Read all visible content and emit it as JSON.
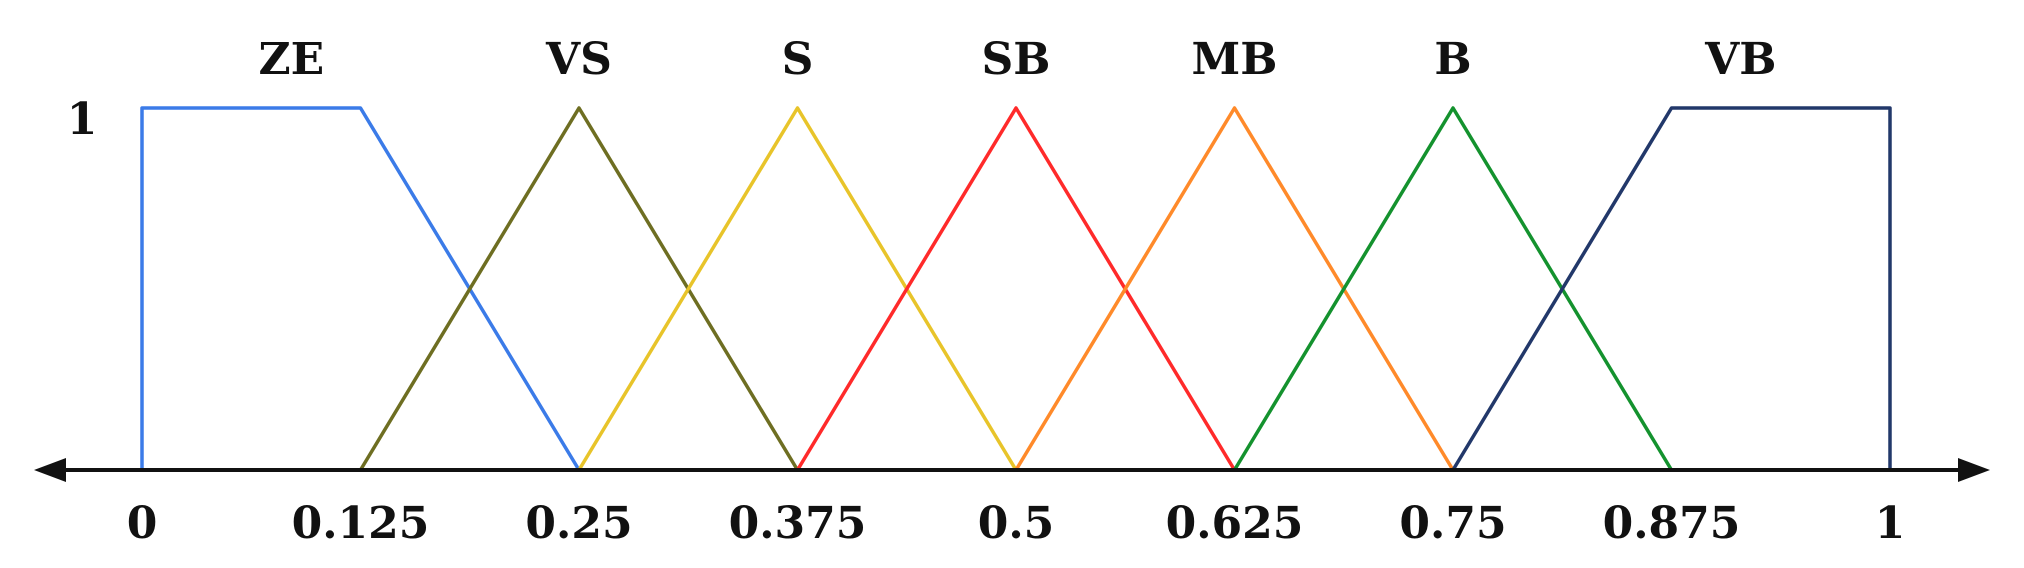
{
  "chart_data": {
    "type": "line",
    "title": "",
    "xlabel": "",
    "ylabel": "",
    "xlim": [
      0,
      1
    ],
    "ylim": [
      0,
      1
    ],
    "grid": false,
    "legend": "none",
    "x_ticks": [
      "0",
      "0.125",
      "0.25",
      "0.375",
      "0.5",
      "0.625",
      "0.75",
      "0.875",
      "1"
    ],
    "x_tick_values": [
      0,
      0.125,
      0.25,
      0.375,
      0.5,
      0.625,
      0.75,
      0.875,
      1
    ],
    "y_ticks": [
      "1"
    ],
    "y_tick_values": [
      1
    ],
    "series": [
      {
        "name": "ZE",
        "color": "#3b7be8",
        "x": [
          0,
          0,
          0.125,
          0.25
        ],
        "y": [
          0,
          1,
          1,
          0
        ]
      },
      {
        "name": "VS",
        "color": "#6e6e22",
        "x": [
          0.125,
          0.25,
          0.375
        ],
        "y": [
          0,
          1,
          0
        ]
      },
      {
        "name": "S",
        "color": "#e8c42a",
        "x": [
          0.25,
          0.375,
          0.5
        ],
        "y": [
          0,
          1,
          0
        ]
      },
      {
        "name": "SB",
        "color": "#ff2a2a",
        "x": [
          0.375,
          0.5,
          0.625
        ],
        "y": [
          0,
          1,
          0
        ]
      },
      {
        "name": "MB",
        "color": "#ff8a2a",
        "x": [
          0.5,
          0.625,
          0.75
        ],
        "y": [
          0,
          1,
          0
        ]
      },
      {
        "name": "B",
        "color": "#14922e",
        "x": [
          0.625,
          0.75,
          0.875
        ],
        "y": [
          0,
          1,
          0
        ]
      },
      {
        "name": "VB",
        "color": "#22386a",
        "x": [
          0.75,
          0.875,
          1,
          1
        ],
        "y": [
          0,
          1,
          1,
          0
        ]
      }
    ]
  }
}
